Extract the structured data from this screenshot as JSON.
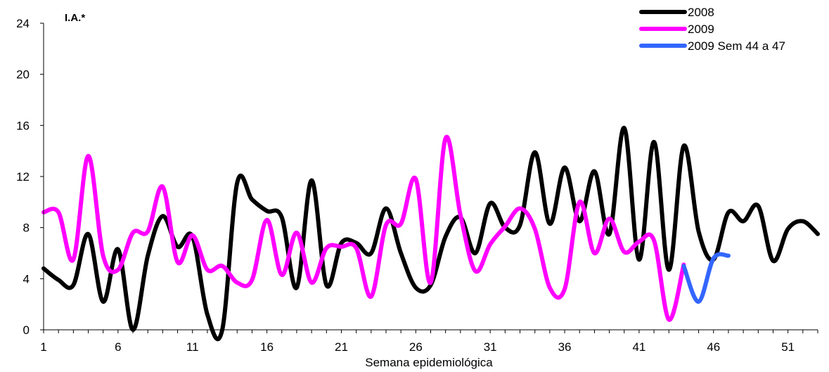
{
  "chart_data": {
    "type": "line",
    "title": "",
    "xlabel": "Semana epidemiológica",
    "ylabel": "I.A.*",
    "ylim": [
      0,
      24
    ],
    "xlim": [
      1,
      53
    ],
    "yticks": [
      0,
      4,
      8,
      12,
      16,
      20,
      24
    ],
    "xticks": [
      1,
      6,
      11,
      16,
      21,
      26,
      31,
      36,
      41,
      46,
      51
    ],
    "grid": false,
    "legend_position": "top-right",
    "series": [
      {
        "name": "2008",
        "color": "#000000",
        "x": [
          1,
          2,
          3,
          4,
          5,
          6,
          7,
          8,
          9,
          10,
          11,
          12,
          13,
          14,
          15,
          16,
          17,
          18,
          19,
          20,
          21,
          22,
          23,
          24,
          25,
          26,
          27,
          28,
          29,
          30,
          31,
          32,
          33,
          34,
          35,
          36,
          37,
          38,
          39,
          40,
          41,
          42,
          43,
          44,
          45,
          46,
          47,
          48,
          49,
          50,
          51,
          52,
          53
        ],
        "y": [
          4.8,
          3.9,
          3.5,
          7.5,
          2.2,
          6.3,
          0,
          5.8,
          8.9,
          6.5,
          7.3,
          1.2,
          0,
          11.5,
          10.2,
          9.3,
          8.8,
          3.3,
          11.7,
          3.5,
          6.8,
          6.8,
          6.0,
          9.5,
          6.0,
          3.3,
          3.5,
          7.3,
          8.8,
          6.0,
          9.9,
          8.0,
          8.2,
          13.9,
          8.3,
          12.7,
          8.5,
          12.4,
          7.5,
          15.8,
          5.5,
          14.7,
          4.7,
          14.4,
          7.7,
          5.5,
          9.2,
          8.5,
          9.7,
          5.4,
          7.9,
          8.5,
          7.5
        ]
      },
      {
        "name": "2009",
        "color": "#ff00ff",
        "x": [
          1,
          2,
          3,
          4,
          5,
          6,
          7,
          8,
          9,
          10,
          11,
          12,
          13,
          14,
          15,
          16,
          17,
          18,
          19,
          20,
          21,
          22,
          23,
          24,
          25,
          26,
          27,
          28,
          29,
          30,
          31,
          32,
          33,
          34,
          35,
          36,
          37,
          38,
          39,
          40,
          41,
          42,
          43,
          44
        ],
        "y": [
          9.2,
          9.2,
          5.5,
          13.6,
          5.8,
          4.7,
          7.6,
          7.7,
          11.2,
          5.3,
          7.4,
          4.7,
          5.0,
          3.7,
          3.9,
          8.6,
          4.3,
          7.6,
          3.7,
          6.4,
          6.5,
          6.4,
          2.6,
          8.2,
          8.3,
          11.8,
          3.7,
          15.0,
          9.0,
          4.6,
          6.7,
          8.1,
          9.5,
          7.9,
          3.3,
          3.2,
          10.0,
          6.0,
          8.7,
          6.1,
          6.9,
          7.0,
          0.8,
          5.1
        ]
      },
      {
        "name": "2009 Sem 44 a 47",
        "color": "#3366ff",
        "x": [
          44,
          45,
          46,
          47
        ],
        "y": [
          5.0,
          2.2,
          5.6,
          5.8
        ]
      }
    ]
  }
}
